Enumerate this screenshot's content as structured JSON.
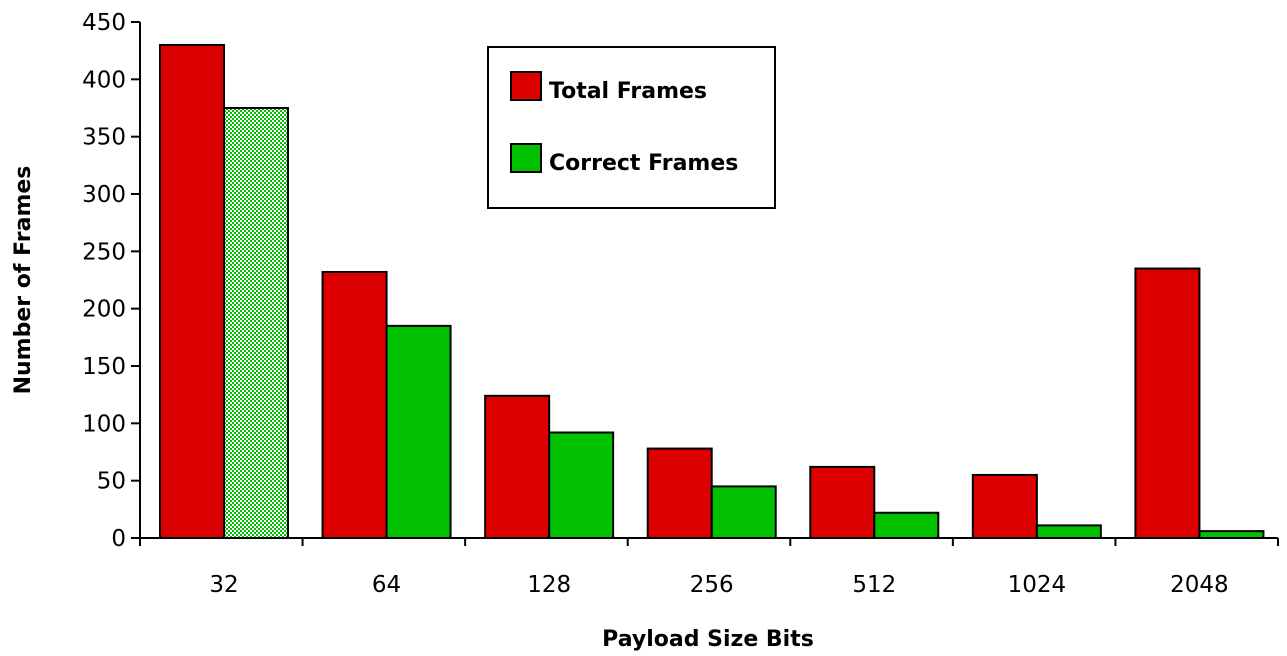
{
  "chart_data": {
    "type": "bar",
    "title": "",
    "xlabel": "Payload Size Bits",
    "ylabel": "Number of Frames",
    "categories": [
      "32",
      "64",
      "128",
      "256",
      "512",
      "1024",
      "2048"
    ],
    "ylim": [
      0,
      450
    ],
    "yticks": [
      0,
      50,
      100,
      150,
      200,
      250,
      300,
      350,
      400,
      450
    ],
    "grid": false,
    "legend_position": "top-center",
    "series": [
      {
        "name": "Total Frames",
        "color": "#dd0000",
        "values": [
          430,
          232,
          124,
          78,
          62,
          55,
          235
        ]
      },
      {
        "name": "Correct Frames",
        "color": "#00c000",
        "values": [
          375,
          185,
          92,
          45,
          22,
          11,
          6
        ]
      }
    ]
  }
}
